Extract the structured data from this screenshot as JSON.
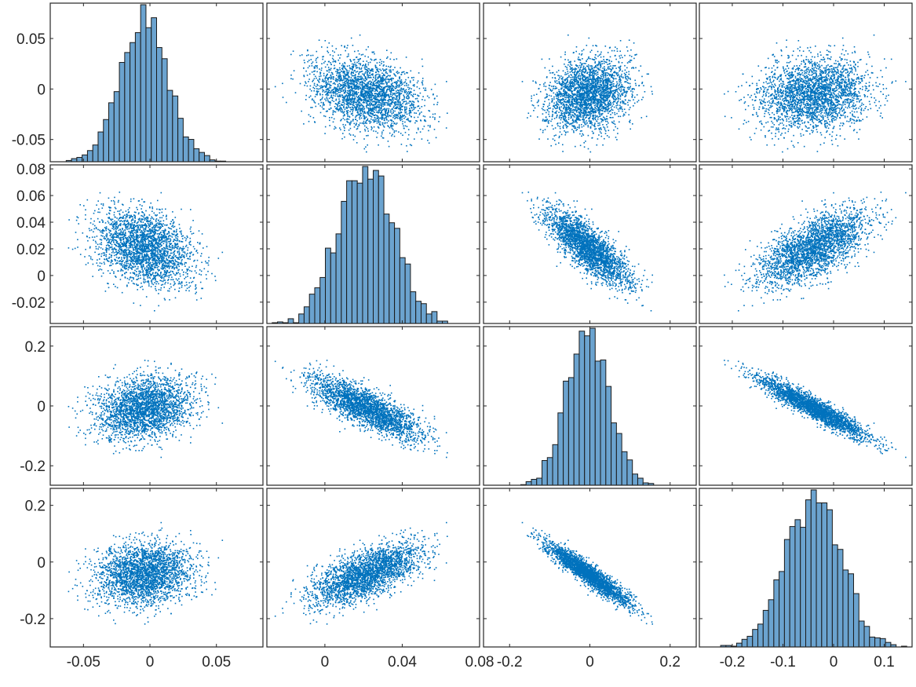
{
  "chart_data": {
    "type": "scatter",
    "subtype": "scatter-plot-matrix",
    "n_vars": 4,
    "marker_color": "#0072BD",
    "hist_fill": "#6BA3CF",
    "hist_edge": "#1A1A1A",
    "axis_color": "#262626",
    "variables": [
      {
        "mean": -0.004,
        "sd": 0.018,
        "xlim": [
          -0.075,
          0.085
        ],
        "ylim": [
          -0.072,
          0.085
        ],
        "xticks": [
          {
            "v": -0.05,
            "label": "-0.05"
          },
          {
            "v": 0,
            "label": "0"
          },
          {
            "v": 0.05,
            "label": "0.05"
          }
        ],
        "yticks": [
          {
            "v": -0.05,
            "label": "-0.05"
          },
          {
            "v": 0,
            "label": "0"
          },
          {
            "v": 0.05,
            "label": "0.05"
          }
        ]
      },
      {
        "mean": 0.021,
        "sd": 0.014,
        "xlim": [
          -0.03,
          0.08
        ],
        "ylim": [
          -0.036,
          0.083
        ],
        "xticks": [
          {
            "v": 0,
            "label": "0"
          },
          {
            "v": 0.04,
            "label": "0.04"
          },
          {
            "v": 0.08,
            "label": "0.08"
          }
        ],
        "yticks": [
          {
            "v": -0.02,
            "label": "-0.02"
          },
          {
            "v": 0,
            "label": "0"
          },
          {
            "v": 0.02,
            "label": "0.02"
          },
          {
            "v": 0.04,
            "label": "0.04"
          },
          {
            "v": 0.06,
            "label": "0.06"
          },
          {
            "v": 0.08,
            "label": "0.08"
          }
        ]
      },
      {
        "mean": -0.005,
        "sd": 0.052,
        "xlim": [
          -0.265,
          0.265
        ],
        "ylim": [
          -0.265,
          0.265
        ],
        "xticks": [
          {
            "v": -0.2,
            "label": "-0.2"
          },
          {
            "v": 0,
            "label": "0"
          },
          {
            "v": 0.2,
            "label": "0.2"
          }
        ],
        "yticks": [
          {
            "v": -0.2,
            "label": "-0.2"
          },
          {
            "v": 0,
            "label": "0"
          },
          {
            "v": 0.2,
            "label": "0.2"
          }
        ]
      },
      {
        "mean": -0.04,
        "sd": 0.052,
        "xlim": [
          -0.265,
          0.155
        ],
        "ylim": [
          -0.3,
          0.26
        ],
        "xticks": [
          {
            "v": -0.2,
            "label": "-0.2"
          },
          {
            "v": -0.1,
            "label": "-0.1"
          },
          {
            "v": 0,
            "label": "0"
          },
          {
            "v": 0.1,
            "label": "0.1"
          }
        ],
        "yticks": [
          {
            "v": -0.2,
            "label": "-0.2"
          },
          {
            "v": 0,
            "label": "0"
          },
          {
            "v": 0.2,
            "label": "0.2"
          }
        ]
      }
    ],
    "correlations": [
      [
        1.0,
        -0.3,
        0.2,
        0.15
      ],
      [
        -0.3,
        1.0,
        -0.8,
        0.68
      ],
      [
        0.2,
        -0.8,
        1.0,
        -0.985
      ],
      [
        0.15,
        0.68,
        -0.985,
        1.0
      ]
    ],
    "points_per_panel": 2600,
    "hist_bins": 40,
    "grid": false,
    "legend": "none"
  }
}
